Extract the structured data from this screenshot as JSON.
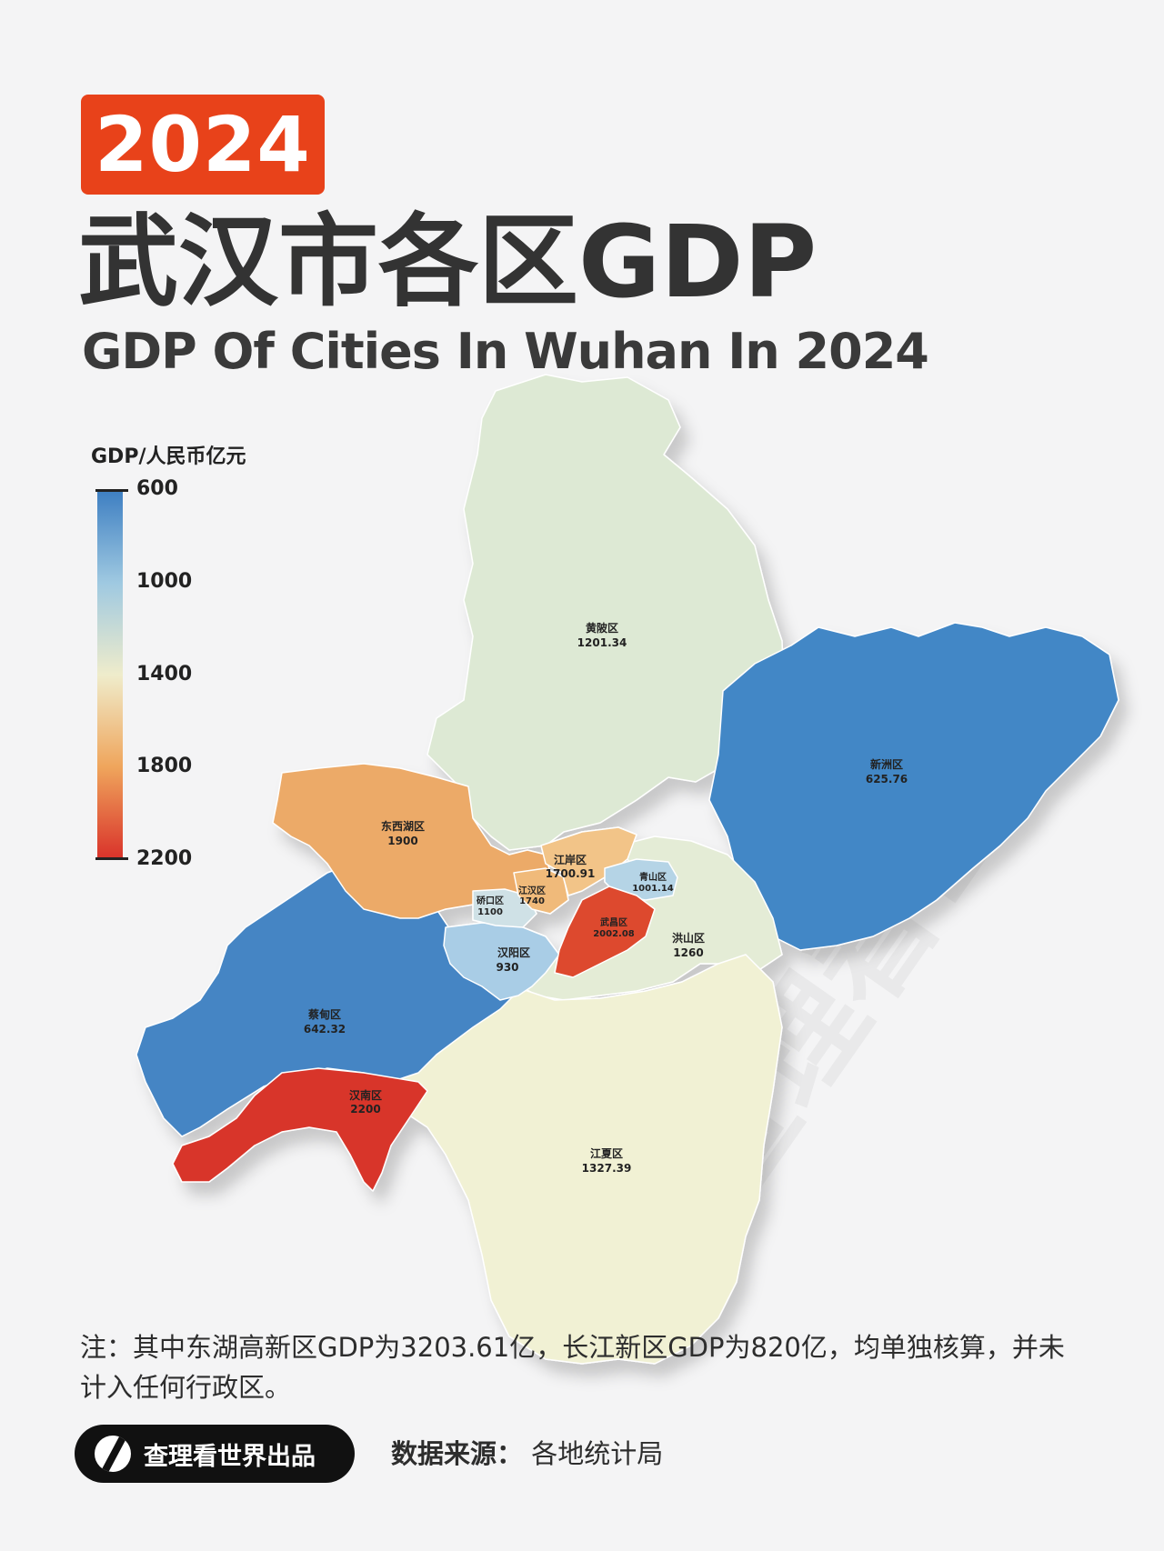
{
  "header": {
    "year": "2024",
    "title_cn": "武汉市各区GDP",
    "title_en": "GDP Of Cities In Wuhan In 2024"
  },
  "legend": {
    "title": "GDP/人民币亿元",
    "ticks": [
      "600",
      "1000",
      "1400",
      "1800",
      "2200"
    ],
    "colors": [
      "#3e7fc2",
      "#9fc9e1",
      "#efeccb",
      "#efa55c",
      "#d9322a"
    ]
  },
  "districts": [
    {
      "name": "黄陂区",
      "gdp": "1201.34",
      "color": "#dde9d4"
    },
    {
      "name": "新洲区",
      "gdp": "625.76",
      "color": "#4387c6"
    },
    {
      "name": "东西湖区",
      "gdp": "1900",
      "color": "#ecaa68"
    },
    {
      "name": "江岸区",
      "gdp": "1700.91",
      "color": "#f2c488"
    },
    {
      "name": "江汉区",
      "gdp": "1740",
      "color": "#f0ba7a"
    },
    {
      "name": "硚口区",
      "gdp": "1100",
      "color": "#cfe1e6"
    },
    {
      "name": "青山区",
      "gdp": "1001.14",
      "color": "#b5d4e6"
    },
    {
      "name": "武昌区",
      "gdp": "2002.08",
      "color": "#dd4a2f"
    },
    {
      "name": "洪山区",
      "gdp": "1260",
      "color": "#e4ecd6"
    },
    {
      "name": "汉阳区",
      "gdp": "930",
      "color": "#a9cde6"
    },
    {
      "name": "蔡甸区",
      "gdp": "642.32",
      "color": "#4485c4"
    },
    {
      "name": "汉南区",
      "gdp": "2200",
      "color": "#d8352b"
    },
    {
      "name": "江夏区",
      "gdp": "1327.39",
      "color": "#f1f1d4"
    }
  ],
  "watermark": "查理看世界",
  "footer": {
    "note": "注：其中东湖高新区GDP为3203.61亿，长江新区GDP为820亿，均单独核算，并未计入任何行政区。",
    "brand": "查理看世界出品",
    "source_label": "数据来源：",
    "source_value": "各地统计局"
  }
}
